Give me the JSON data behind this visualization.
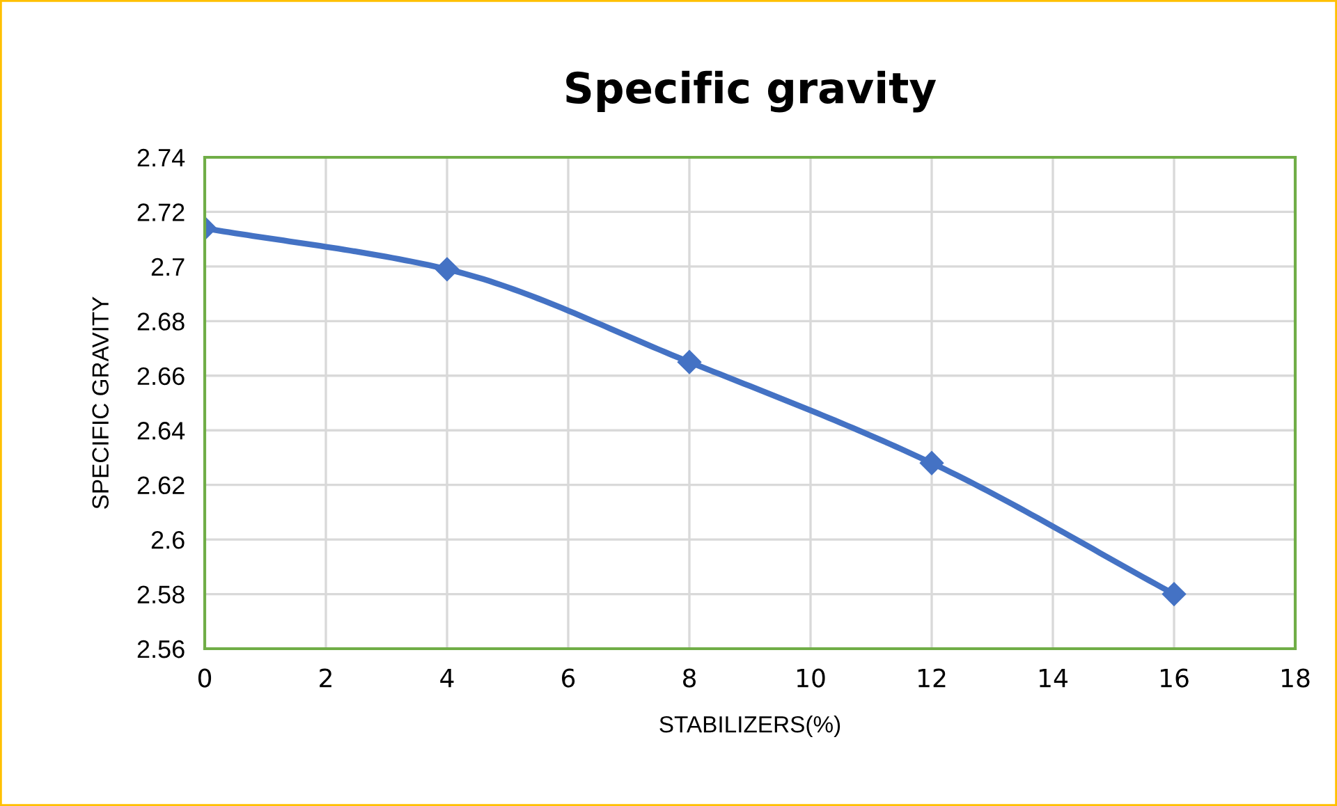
{
  "chart_data": {
    "type": "line",
    "title": "Specific gravity",
    "xlabel": "STABILIZERS(%)",
    "ylabel": "SPECIFIC GRAVITY",
    "x": [
      0,
      4,
      8,
      12,
      16
    ],
    "series": [
      {
        "color": "#4472c4",
        "values": [
          2.714,
          2.699,
          2.665,
          2.628,
          2.58
        ]
      }
    ],
    "xlim": [
      0,
      18
    ],
    "xticks": [
      0,
      2,
      4,
      6,
      8,
      10,
      12,
      14,
      16,
      18
    ],
    "ylim": [
      2.56,
      2.74
    ],
    "yticks": [
      2.56,
      2.58,
      2.6,
      2.62,
      2.64,
      2.66,
      2.68,
      2.7,
      2.72,
      2.74
    ],
    "grid": true,
    "marker": "diamond",
    "line_style": "solid",
    "legend": false
  }
}
